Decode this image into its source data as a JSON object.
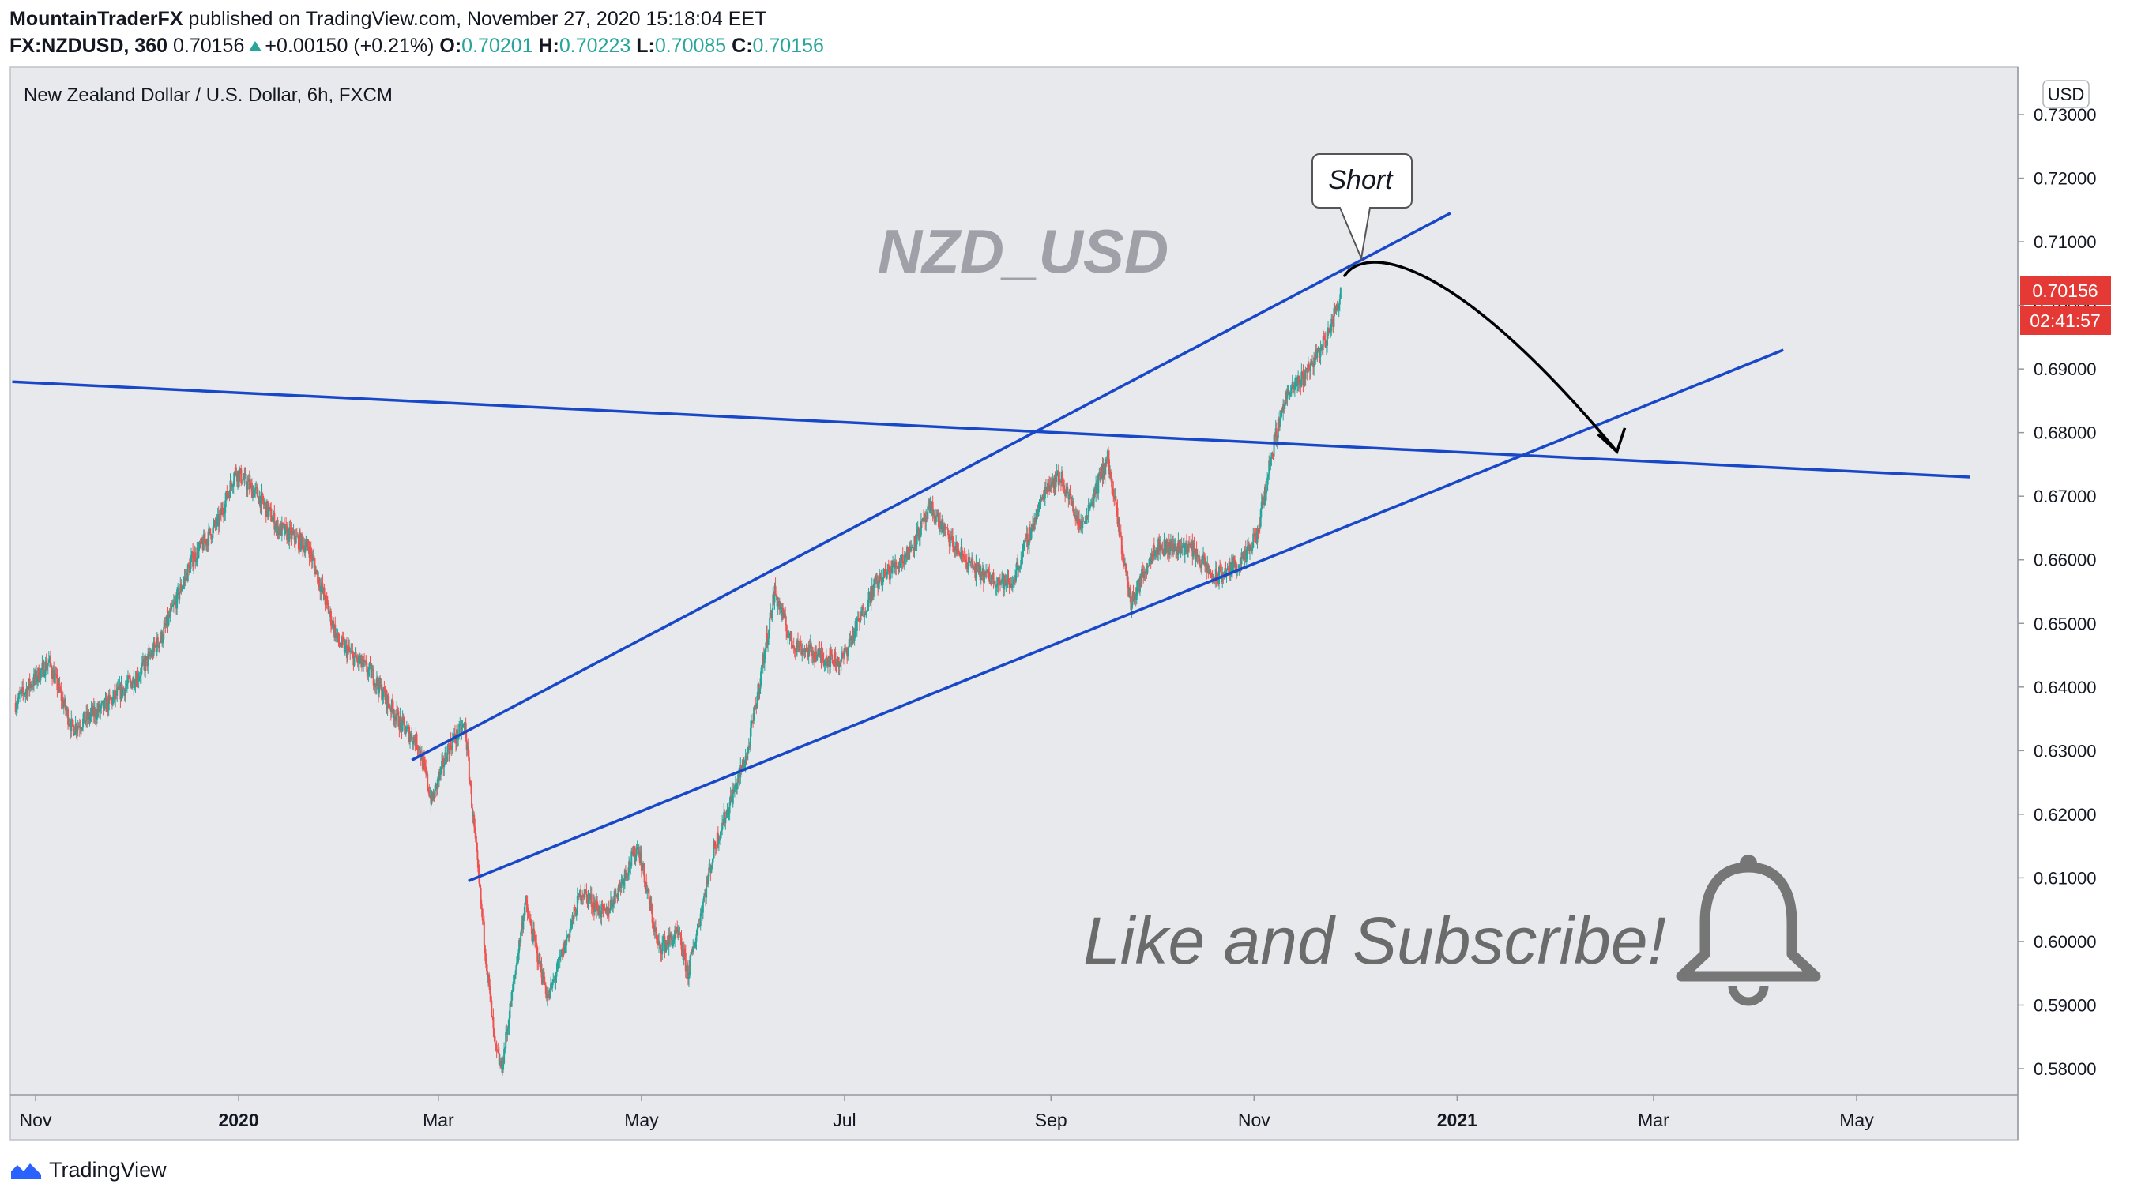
{
  "header": {
    "author": "MountainTraderFX",
    "published_text": "published on TradingView.com, November 27, 2020 15:18:04 EET",
    "symbol": "FX:NZDUSD, 360",
    "last": "0.70156",
    "change": "+0.00150 (+0.21%)",
    "o_label": "O:",
    "o": "0.70201",
    "h_label": "H:",
    "h": "0.70223",
    "l_label": "L:",
    "l": "0.70085",
    "c_label": "C:",
    "c": "0.70156"
  },
  "footer": {
    "brand": "TradingView"
  },
  "colors": {
    "plot_bg": "#e8e9ed",
    "up": "#26a69a",
    "down": "#ef5350",
    "trendline": "#1848c8",
    "price_tag": "#e53935",
    "watermark": "#a0a0a8",
    "overlay_text": "#6b6b6b"
  },
  "chart_data": {
    "type": "candlestick",
    "title": "New Zealand Dollar / U.S. Dollar, 6h, FXCM",
    "currency_label": "USD",
    "watermark": "NZD_USD",
    "y_ticks": [
      "0.73000",
      "0.72000",
      "0.71000",
      "0.70000",
      "0.69000",
      "0.68000",
      "0.67000",
      "0.66000",
      "0.65000",
      "0.64000",
      "0.63000",
      "0.62000",
      "0.61000",
      "0.60000",
      "0.59000",
      "0.58000"
    ],
    "x_ticks": [
      "Nov",
      "2020",
      "Mar",
      "May",
      "Jul",
      "Sep",
      "Nov",
      "2021",
      "Mar",
      "May"
    ],
    "x_ticks_bold": [
      "2020",
      "2021"
    ],
    "last_price": "0.70156",
    "countdown": "02:41:57",
    "price_path": [
      [
        "2019-10-26",
        0.6375
      ],
      [
        "2019-11-05",
        0.644
      ],
      [
        "2019-11-12",
        0.6335
      ],
      [
        "2019-11-22",
        0.637
      ],
      [
        "2019-12-02",
        0.642
      ],
      [
        "2019-12-09",
        0.648
      ],
      [
        "2019-12-18",
        0.66
      ],
      [
        "2019-12-26",
        0.666
      ],
      [
        "2019-12-31",
        0.674
      ],
      [
        "2020-01-07",
        0.67
      ],
      [
        "2020-01-13",
        0.665
      ],
      [
        "2020-01-22",
        0.662
      ],
      [
        "2020-01-31",
        0.647
      ],
      [
        "2020-02-10",
        0.642
      ],
      [
        "2020-02-19",
        0.634
      ],
      [
        "2020-02-24",
        0.631
      ],
      [
        "2020-02-28",
        0.622
      ],
      [
        "2020-03-04",
        0.6305
      ],
      [
        "2020-03-09",
        0.634
      ],
      [
        "2020-03-13",
        0.61
      ],
      [
        "2020-03-18",
        0.583
      ],
      [
        "2020-03-20",
        0.58
      ],
      [
        "2020-03-27",
        0.606
      ],
      [
        "2020-04-03",
        0.591
      ],
      [
        "2020-04-13",
        0.608
      ],
      [
        "2020-04-20",
        0.604
      ],
      [
        "2020-04-30",
        0.615
      ],
      [
        "2020-05-06",
        0.599
      ],
      [
        "2020-05-12",
        0.601
      ],
      [
        "2020-05-15",
        0.595
      ],
      [
        "2020-05-23",
        0.615
      ],
      [
        "2020-06-02",
        0.63
      ],
      [
        "2020-06-10",
        0.655
      ],
      [
        "2020-06-15",
        0.647
      ],
      [
        "2020-06-23",
        0.645
      ],
      [
        "2020-06-30",
        0.644
      ],
      [
        "2020-07-10",
        0.656
      ],
      [
        "2020-07-20",
        0.661
      ],
      [
        "2020-07-27",
        0.668
      ],
      [
        "2020-08-03",
        0.662
      ],
      [
        "2020-08-10",
        0.658
      ],
      [
        "2020-08-20",
        0.656
      ],
      [
        "2020-08-31",
        0.672
      ],
      [
        "2020-09-04",
        0.673
      ],
      [
        "2020-09-10",
        0.665
      ],
      [
        "2020-09-18",
        0.676
      ],
      [
        "2020-09-25",
        0.653
      ],
      [
        "2020-10-02",
        0.662
      ],
      [
        "2020-10-13",
        0.662
      ],
      [
        "2020-10-20",
        0.657
      ],
      [
        "2020-10-29",
        0.66
      ],
      [
        "2020-11-02",
        0.664
      ],
      [
        "2020-11-06",
        0.676
      ],
      [
        "2020-11-10",
        0.685
      ],
      [
        "2020-11-16",
        0.689
      ],
      [
        "2020-11-23",
        0.695
      ],
      [
        "2020-11-27",
        0.7016
      ]
    ],
    "trendlines": [
      {
        "name": "channel-top",
        "from": [
          "2020-02-22",
          0.6285
        ],
        "to": [
          "2020-12-30",
          0.7145
        ]
      },
      {
        "name": "channel-bottom",
        "from": [
          "2020-03-10",
          0.6095
        ],
        "to": [
          "2021-04-09",
          0.693
        ]
      },
      {
        "name": "descending-line",
        "from": [
          "2019-10-25",
          0.688
        ],
        "to": [
          "2021-06-04",
          0.673
        ]
      }
    ],
    "projection_arrow": {
      "from": [
        "2020-11-28",
        0.7045
      ],
      "peak": [
        "2020-12-04",
        0.7065
      ],
      "to": [
        "2021-02-18",
        0.677
      ]
    },
    "annotations": {
      "callout": "Short",
      "cta": "Like and Subscribe!"
    }
  }
}
